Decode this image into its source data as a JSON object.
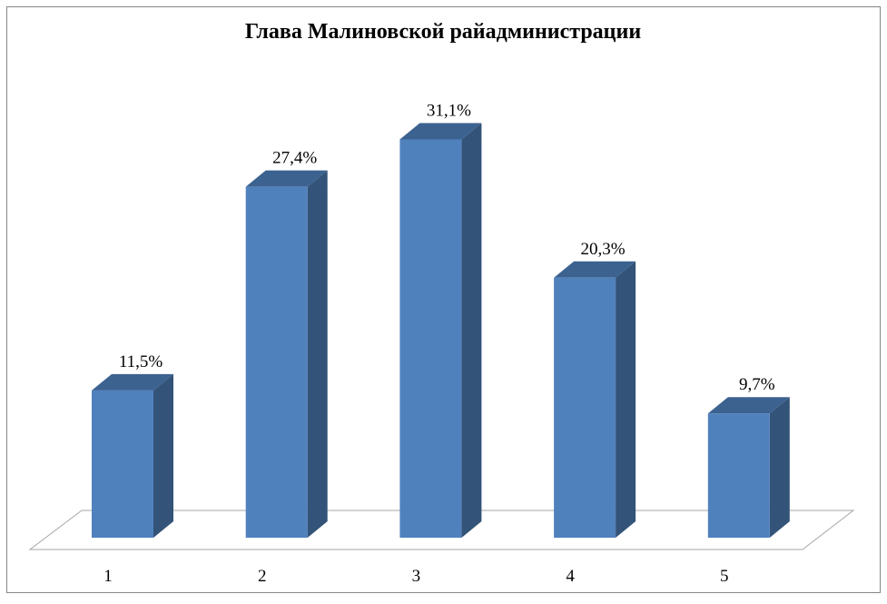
{
  "chart_data": {
    "type": "bar",
    "style": "3d-column",
    "title": "Глава Малиновской райадминистрации",
    "categories": [
      "1",
      "2",
      "3",
      "4",
      "5"
    ],
    "values": [
      11.5,
      27.4,
      31.1,
      20.3,
      9.7
    ],
    "data_labels": [
      "11,5%",
      "27,4%",
      "31,1%",
      "20,3%",
      "9,7%"
    ],
    "xlabel": "",
    "ylabel": "",
    "ylim": [
      0,
      35
    ],
    "grid": false,
    "legend": "none",
    "colors": {
      "front": "#4f81bd",
      "top": "#3c6290",
      "side": "#335378",
      "floor": "#a6a6a6",
      "border": "#868686"
    }
  }
}
